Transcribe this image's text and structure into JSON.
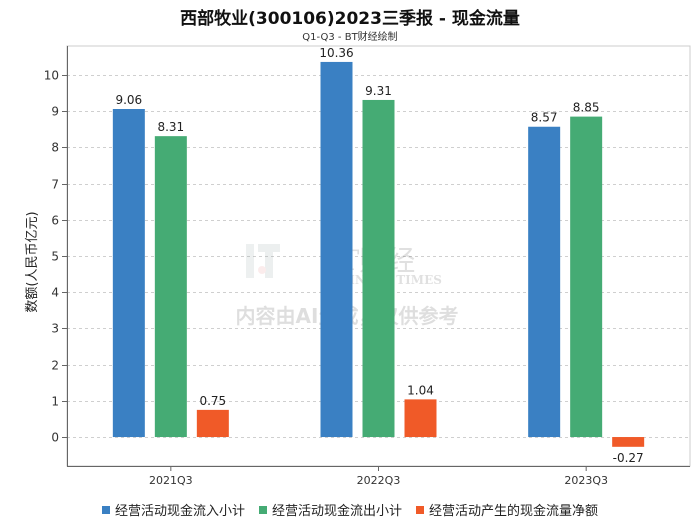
{
  "chart_data": {
    "type": "bar",
    "title": "西部牧业(300106)2023三季报 - 现金流量",
    "subtitle": "Q1-Q3 - BT财经绘制",
    "ylabel": "数额(人民币亿元)",
    "xlabel": "",
    "ylim": [
      -0.8,
      10.8
    ],
    "yticks": [
      0,
      1,
      2,
      3,
      4,
      5,
      6,
      7,
      8,
      9,
      10
    ],
    "grid": true,
    "legend_position": "bottom",
    "categories": [
      "2021Q3",
      "2022Q3",
      "2023Q3"
    ],
    "series": [
      {
        "name": "经营活动现金流入小计",
        "color": "#3a80c3",
        "values": [
          9.06,
          10.36,
          8.57
        ],
        "labels": [
          "9.06",
          "10.36",
          "8.57"
        ]
      },
      {
        "name": "经营活动现金流出小计",
        "color": "#45ab74",
        "values": [
          8.31,
          9.31,
          8.85
        ],
        "labels": [
          "8.31",
          "9.31",
          "8.85"
        ]
      },
      {
        "name": "经营活动产生的现金流量净额",
        "color": "#f05a28",
        "values": [
          0.75,
          1.04,
          -0.27
        ],
        "labels": [
          "0.75",
          "1.04",
          "-0.27"
        ]
      }
    ]
  },
  "watermark": {
    "brand": "BT财经",
    "brand_en": "BUSINESS TIMES",
    "notice": "内容由AI生成，仅供参考"
  }
}
